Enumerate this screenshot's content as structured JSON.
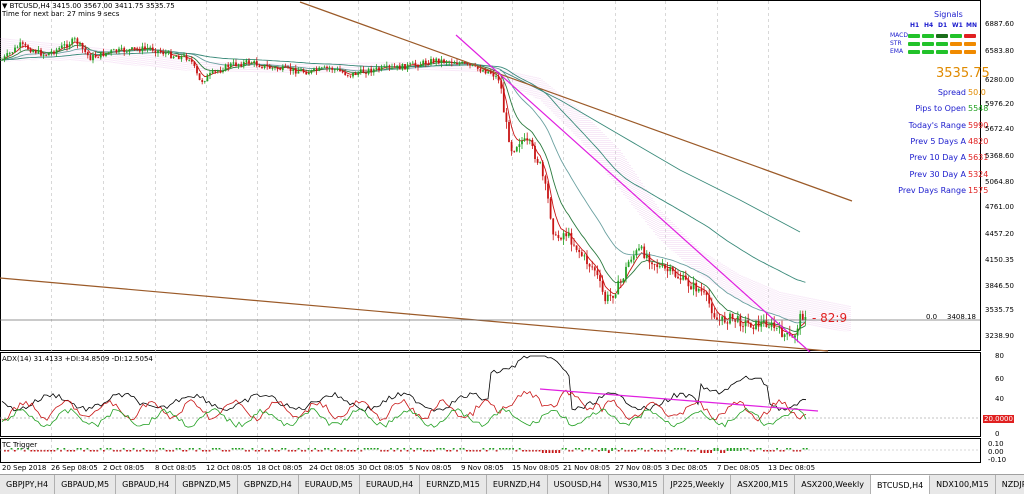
{
  "chart": {
    "header": "▼ BTCUSD,H4  3415.00 3567.00 3411.75 3535.75",
    "time_left": "Time for next bar: 27 mins 9 secs",
    "price_label": "3535.75",
    "price_line_value": "3408.18",
    "price_line_prefix": "0.0",
    "ratio_label": "- 82:9"
  },
  "signals": {
    "title": "Signals",
    "columns": [
      "H1",
      "H4",
      "D1",
      "W1",
      "MN"
    ],
    "rows": [
      {
        "label": "MACD",
        "colors": [
          "#22c22a",
          "#22c22a",
          "#1a6e1a",
          "#22c22a",
          "#e02020"
        ]
      },
      {
        "label": "STR",
        "colors": [
          "#22c22a",
          "#22c22a",
          "#22c22a",
          "#f08a00",
          "#f08a00"
        ]
      },
      {
        "label": "EMA",
        "colors": [
          "#22c22a",
          "#22c22a",
          "#22c22a",
          "#f08a00",
          "#f08a00"
        ]
      }
    ]
  },
  "stats": {
    "big_price": "3535.75",
    "rows": [
      {
        "label": "Spread",
        "value": "50.0",
        "color": "#e08a00"
      },
      {
        "label": "Pips to Open",
        "value": "5548",
        "color": "#22a022"
      },
      {
        "label": "Today's Range",
        "value": "5990",
        "color": "#e02020"
      },
      {
        "label": "Prev 5 Days A",
        "value": "4820",
        "color": "#e02020"
      },
      {
        "label": "Prev 10 Day A",
        "value": "5631",
        "color": "#e02020"
      },
      {
        "label": "Prev 30 Day A",
        "value": "5324",
        "color": "#e02020"
      },
      {
        "label": "Prev Days Range",
        "value": "1575",
        "color": "#e02020"
      }
    ]
  },
  "price_axis": [
    "6887.60",
    "6583.80",
    "6280.00",
    "5976.20",
    "5672.40",
    "5368.60",
    "5064.80",
    "4761.00",
    "4457.20",
    "4150.35",
    "3846.50",
    "3535.75",
    "3238.90"
  ],
  "adx": {
    "header": "ADX(14) 31.4133 +DI:34.8509 -DI:12.5054",
    "axis": [
      "80",
      "60",
      "40",
      "20",
      "0"
    ],
    "level_label": "20.0000"
  },
  "tc": {
    "header": "TC Trigger",
    "axis": [
      "0.10",
      "0.00",
      "-0.10"
    ]
  },
  "date_axis": [
    "20 Sep 2018",
    "26 Sep 08:05",
    "2 Oct 08:05",
    "8 Oct 08:05",
    "12 Oct 08:05",
    "18 Oct 08:05",
    "24 Oct 08:05",
    "30 Oct 08:05",
    "5 Nov 08:05",
    "9 Nov 08:05",
    "15 Nov 08:05",
    "21 Nov 08:05",
    "27 Nov 08:05",
    "3 Dec 08:05",
    "7 Dec 08:05",
    "13 Dec 08:05"
  ],
  "tabs": [
    {
      "label": "GBPJPY,H4",
      "active": false
    },
    {
      "label": "GBPAUD,M5",
      "active": false
    },
    {
      "label": "GBPAUD,H4",
      "active": false
    },
    {
      "label": "GBPNZD,M5",
      "active": false
    },
    {
      "label": "GBPNZD,H4",
      "active": false
    },
    {
      "label": "EURAUD,M5",
      "active": false
    },
    {
      "label": "EURAUD,H4",
      "active": false
    },
    {
      "label": "EURNZD,M15",
      "active": false
    },
    {
      "label": "EURNZD,H4",
      "active": false
    },
    {
      "label": "USOUSD,H4",
      "active": false
    },
    {
      "label": "WS30,M15",
      "active": false
    },
    {
      "label": "JP225,Weekly",
      "active": false
    },
    {
      "label": "ASX200,M15",
      "active": false
    },
    {
      "label": "ASX200,Weekly",
      "active": false
    },
    {
      "label": "BTCUSD,H4",
      "active": true
    },
    {
      "label": "NDX100,M15",
      "active": false
    },
    {
      "label": "NZDJPY,Daily",
      "active": false
    }
  ],
  "colors": {
    "bull": "#22a022",
    "bear": "#c81414",
    "trendline": "#9b5a28",
    "magenta": "#e020e0",
    "cloud": "#e8b8e8",
    "ma_slow": "#3a8a7a"
  }
}
